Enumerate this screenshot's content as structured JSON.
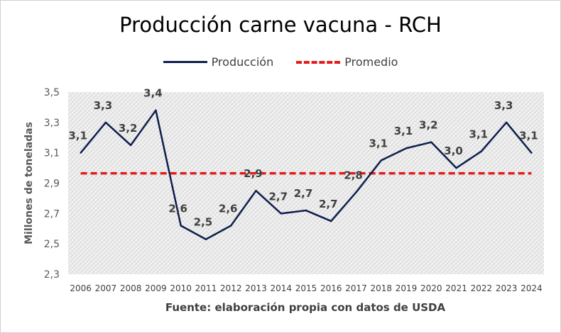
{
  "chart_data": {
    "type": "line",
    "title": "Producción carne vacuna - RCH",
    "xlabel": "",
    "ylabel": "Millones de toneladas",
    "source_note": "Fuente: elaboración propia con datos de USDA",
    "x": [
      "2006",
      "2007",
      "2008",
      "2009",
      "2010",
      "2011",
      "2012",
      "2013",
      "2014",
      "2015",
      "2016",
      "2017",
      "2018",
      "2019",
      "2020",
      "2021",
      "2022",
      "2023",
      "2024"
    ],
    "series": [
      {
        "name": "Producción",
        "color": "#0e1f4d",
        "style": "solid",
        "values": [
          3.1,
          3.3,
          3.15,
          3.38,
          2.62,
          2.53,
          2.62,
          2.85,
          2.7,
          2.72,
          2.65,
          2.84,
          3.05,
          3.13,
          3.17,
          3.0,
          3.11,
          3.3,
          3.1
        ],
        "data_labels": [
          "3,1",
          "3,3",
          "3,2",
          "3,4",
          "2,6",
          "2,5",
          "2,6",
          "2,9",
          "2,7",
          "2,7",
          "2,7",
          "2,8",
          "3,1",
          "3,1",
          "3,2",
          "3,0",
          "3,1",
          "3,3",
          "3,1"
        ]
      },
      {
        "name": "Promedio",
        "color": "#e11c1c",
        "style": "dashed",
        "values": [
          2.965,
          2.965,
          2.965,
          2.965,
          2.965,
          2.965,
          2.965,
          2.965,
          2.965,
          2.965,
          2.965,
          2.965,
          2.965,
          2.965,
          2.965,
          2.965,
          2.965,
          2.965,
          2.965
        ]
      }
    ],
    "ylim": [
      2.3,
      3.5
    ],
    "yticks": [
      2.3,
      2.5,
      2.7,
      2.9,
      3.1,
      3.3,
      3.5
    ],
    "ytick_labels": [
      "2,3",
      "2,5",
      "2,7",
      "2,9",
      "3,1",
      "3,3",
      "3,5"
    ],
    "grid": false,
    "legend_position": "top"
  }
}
